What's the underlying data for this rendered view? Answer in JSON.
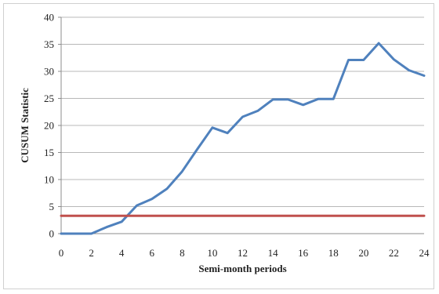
{
  "chart_data": {
    "type": "line",
    "title": "",
    "xlabel": "Semi-month periods",
    "ylabel": "CUSUM  Statistic",
    "xlim": [
      0,
      24
    ],
    "ylim": [
      0,
      40
    ],
    "x_ticks": [
      0,
      2,
      4,
      6,
      8,
      10,
      12,
      14,
      16,
      18,
      20,
      22,
      24
    ],
    "y_ticks": [
      0,
      5,
      10,
      15,
      20,
      25,
      30,
      35,
      40
    ],
    "grid": "horizontal",
    "legend": "none",
    "series": [
      {
        "color": "#4f81bd",
        "x": [
          0,
          1,
          2,
          3,
          4,
          5,
          6,
          7,
          8,
          9,
          10,
          11,
          12,
          13,
          14,
          15,
          16,
          17,
          18,
          19,
          20,
          21,
          22,
          23,
          24
        ],
        "values": [
          0,
          0,
          0,
          1.2,
          2.2,
          5.2,
          6.4,
          8.3,
          11.5,
          15.6,
          19.6,
          18.6,
          21.6,
          22.7,
          24.8,
          24.8,
          23.8,
          24.9,
          24.9,
          32.1,
          32.1,
          35.2,
          32.2,
          30.2,
          29.2
        ]
      },
      {
        "color": "#c0504d",
        "x": [
          0,
          24
        ],
        "values": [
          3.3,
          3.3
        ]
      }
    ]
  }
}
